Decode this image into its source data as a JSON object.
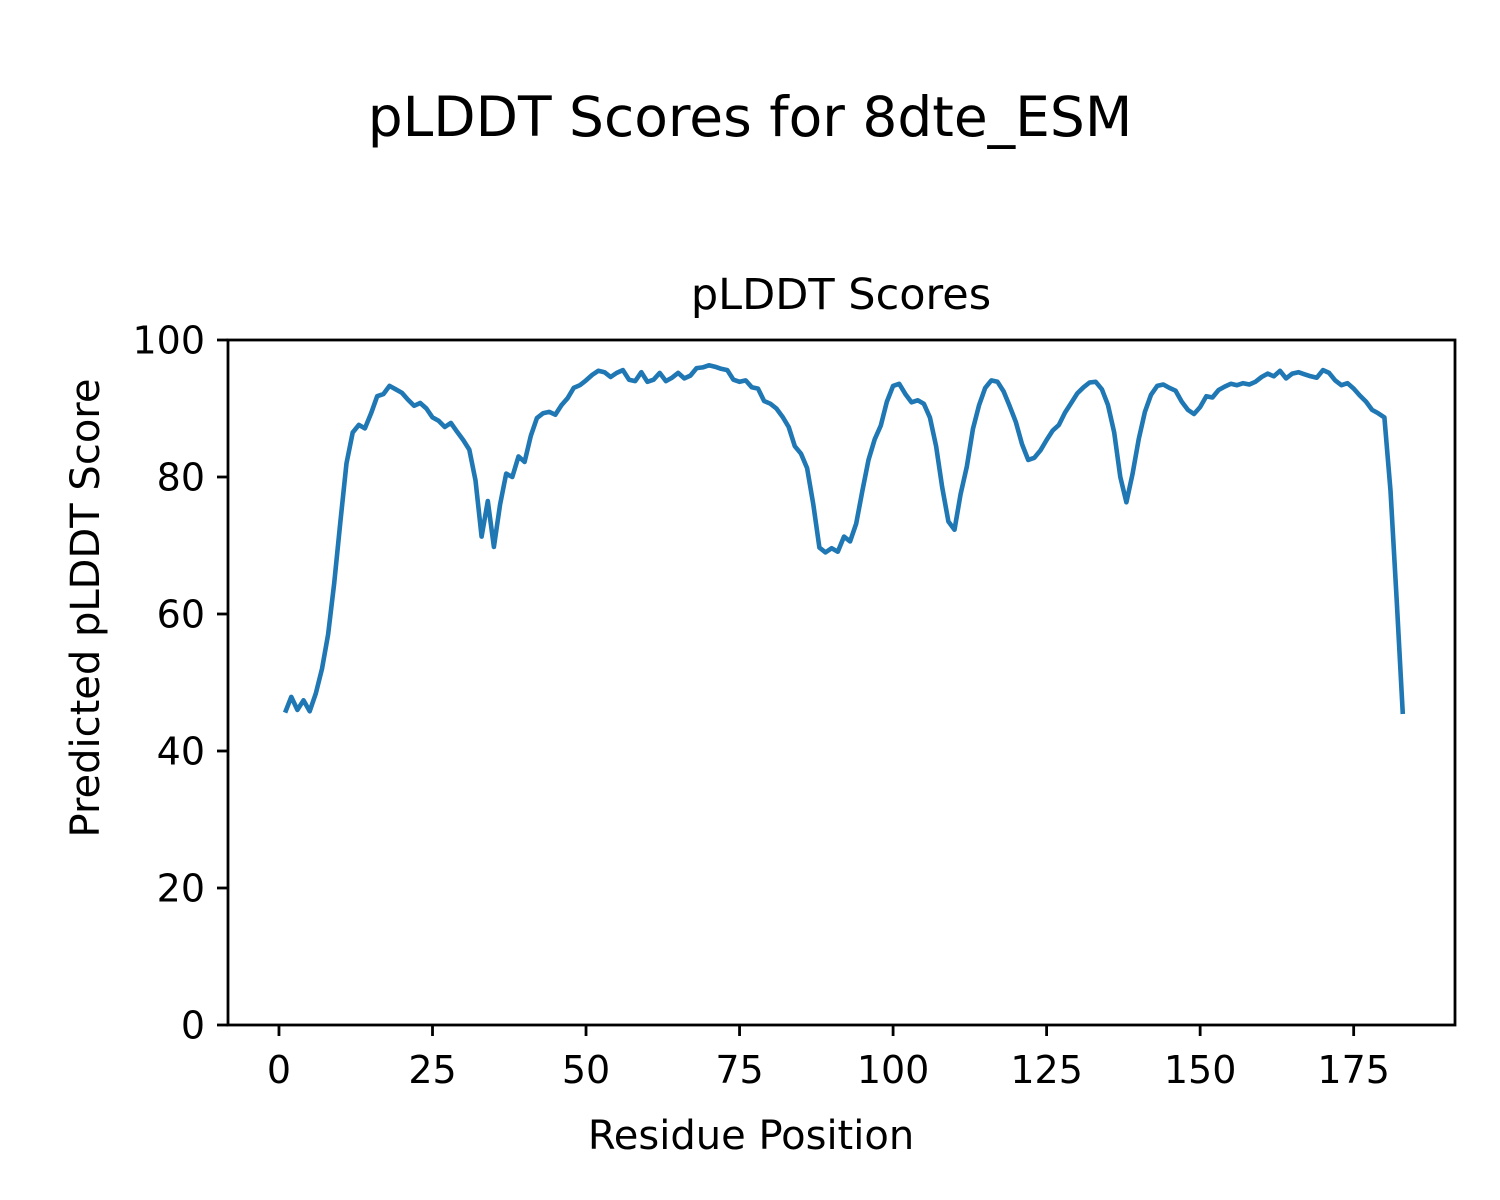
{
  "figure": {
    "suptitle": "pLDDT Scores for 8dte_ESM",
    "background": "#ffffff"
  },
  "chart_data": {
    "type": "line",
    "title": "pLDDT Scores",
    "xlabel": "Residue Position",
    "ylabel": "Predicted pLDDT Score",
    "series_name": "pLDDT",
    "line_color": "#1f77b4",
    "axis_color": "#000000",
    "grid": false,
    "legend": false,
    "x_ticks": [
      0,
      25,
      50,
      75,
      100,
      125,
      150,
      175
    ],
    "y_ticks": [
      0,
      20,
      40,
      60,
      80,
      100
    ],
    "xlim": [
      -8.3,
      191.5
    ],
    "ylim": [
      0,
      100
    ],
    "x": [
      1,
      2,
      3,
      4,
      5,
      6,
      7,
      8,
      9,
      10,
      11,
      12,
      13,
      14,
      15,
      16,
      17,
      18,
      19,
      20,
      21,
      22,
      23,
      24,
      25,
      26,
      27,
      28,
      29,
      30,
      31,
      32,
      33,
      34,
      35,
      36,
      37,
      38,
      39,
      40,
      41,
      42,
      43,
      44,
      45,
      46,
      47,
      48,
      49,
      50,
      51,
      52,
      53,
      54,
      55,
      56,
      57,
      58,
      59,
      60,
      61,
      62,
      63,
      64,
      65,
      66,
      67,
      68,
      69,
      70,
      71,
      72,
      73,
      74,
      75,
      76,
      77,
      78,
      79,
      80,
      81,
      82,
      83,
      84,
      85,
      86,
      87,
      88,
      89,
      90,
      91,
      92,
      93,
      94,
      95,
      96,
      97,
      98,
      99,
      100,
      101,
      102,
      103,
      104,
      105,
      106,
      107,
      108,
      109,
      110,
      111,
      112,
      113,
      114,
      115,
      116,
      117,
      118,
      119,
      120,
      121,
      122,
      123,
      124,
      125,
      126,
      127,
      128,
      129,
      130,
      131,
      132,
      133,
      134,
      135,
      136,
      137,
      138,
      139,
      140,
      141,
      142,
      143,
      144,
      145,
      146,
      147,
      148,
      149,
      150,
      151,
      152,
      153,
      154,
      155,
      156,
      157,
      158,
      159,
      160,
      161,
      162,
      163,
      164,
      165,
      166,
      167,
      168,
      169,
      170,
      171,
      172,
      173,
      174,
      175,
      176,
      177,
      178,
      179,
      180,
      181,
      182,
      183
    ],
    "y": [
      45.6,
      47.9,
      46.0,
      47.4,
      45.8,
      48.4,
      52.0,
      57.0,
      64.5,
      73.5,
      82.0,
      86.5,
      87.6,
      87.1,
      89.3,
      91.8,
      92.1,
      93.3,
      92.8,
      92.3,
      91.3,
      90.4,
      90.8,
      90.0,
      88.7,
      88.2,
      87.3,
      87.9,
      86.6,
      85.4,
      84.0,
      79.5,
      71.3,
      76.5,
      69.8,
      76.0,
      80.5,
      80.0,
      83.0,
      82.2,
      86.0,
      88.6,
      89.3,
      89.5,
      89.1,
      90.5,
      91.5,
      93.0,
      93.4,
      94.1,
      94.9,
      95.5,
      95.3,
      94.6,
      95.2,
      95.6,
      94.2,
      94.0,
      95.3,
      93.9,
      94.2,
      95.2,
      94.0,
      94.5,
      95.2,
      94.4,
      94.8,
      95.9,
      96.0,
      96.3,
      96.1,
      95.8,
      95.6,
      94.2,
      93.9,
      94.1,
      93.1,
      92.9,
      91.1,
      90.7,
      90.0,
      88.8,
      87.3,
      84.5,
      83.4,
      81.3,
      76.0,
      69.7,
      69.0,
      69.6,
      69.1,
      71.3,
      70.6,
      73.2,
      78.0,
      82.5,
      85.5,
      87.5,
      91.0,
      93.3,
      93.6,
      92.1,
      90.9,
      91.2,
      90.7,
      88.7,
      84.5,
      78.5,
      73.5,
      72.3,
      77.5,
      81.5,
      87.0,
      90.5,
      93.0,
      94.1,
      93.9,
      92.5,
      90.3,
      88.0,
      84.8,
      82.5,
      82.8,
      83.9,
      85.4,
      86.8,
      87.6,
      89.4,
      90.8,
      92.2,
      93.1,
      93.8,
      93.9,
      92.8,
      90.5,
      86.5,
      80.0,
      76.3,
      80.5,
      85.5,
      89.5,
      92.0,
      93.3,
      93.5,
      93.0,
      92.6,
      91.0,
      89.8,
      89.2,
      90.2,
      91.8,
      91.6,
      92.7,
      93.2,
      93.6,
      93.4,
      93.7,
      93.5,
      93.9,
      94.6,
      95.1,
      94.7,
      95.5,
      94.4,
      95.1,
      95.3,
      95.0,
      94.7,
      94.5,
      95.6,
      95.2,
      94.1,
      93.4,
      93.7,
      92.9,
      91.9,
      91.0,
      89.8,
      89.3,
      88.7,
      78.0,
      62.0,
      45.4
    ]
  }
}
